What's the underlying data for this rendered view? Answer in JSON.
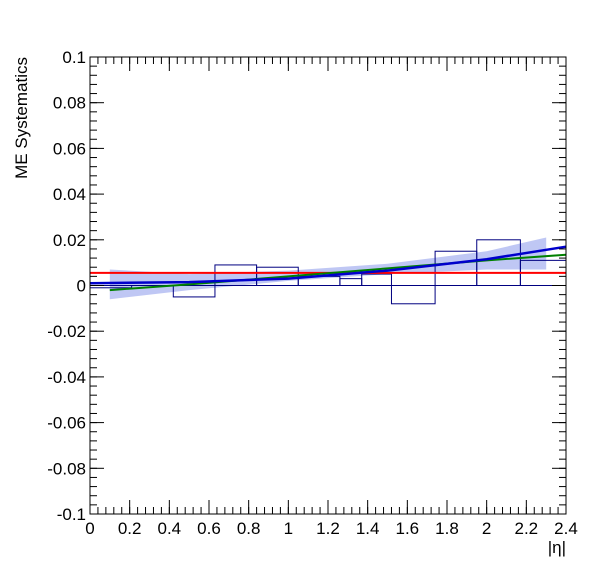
{
  "chart_data": {
    "type": "line",
    "title": "",
    "xlabel": "|η|",
    "ylabel": "ME Systematics",
    "xlim": [
      0,
      2.4
    ],
    "ylim": [
      -0.1,
      0.1
    ],
    "x_ticks": [
      "0",
      "0.2",
      "0.4",
      "0.6",
      "0.8",
      "1",
      "1.2",
      "1.4",
      "1.6",
      "1.8",
      "2",
      "2.2",
      "2.4"
    ],
    "y_ticks": [
      "-0.1",
      "-0.08",
      "-0.06",
      "-0.04",
      "-0.02",
      "0",
      "0.02",
      "0.04",
      "0.06",
      "0.08",
      "0.1"
    ],
    "grid": false,
    "colors": {
      "histogram": "#000080",
      "constant_fit": "#ff0000",
      "green_fit": "#008000",
      "blue_fit": "#0000cc",
      "band": "#aab4f0"
    },
    "histogram": {
      "bin_edges": [
        0.0,
        0.21,
        0.42,
        0.63,
        0.84,
        1.05,
        1.26,
        1.37,
        1.52,
        1.74,
        1.95,
        2.17,
        2.4
      ],
      "values": [
        -0.001,
        0.0,
        -0.005,
        0.009,
        0.008,
        0.004,
        0.003,
        0.005,
        -0.008,
        0.015,
        0.02,
        0.011
      ]
    },
    "series": [
      {
        "x": [
          0.0,
          2.4
        ],
        "y": [
          0.0055,
          0.0055
        ]
      },
      {
        "x": [
          0.1,
          0.5,
          1.0,
          1.5,
          2.0,
          2.4
        ],
        "y": [
          -0.002,
          0.0005,
          0.004,
          0.0075,
          0.011,
          0.0135
        ]
      },
      {
        "x": [
          0.0,
          0.5,
          1.0,
          1.5,
          2.0,
          2.4
        ],
        "y": [
          0.001,
          0.0015,
          0.003,
          0.0065,
          0.0115,
          0.017
        ]
      }
    ],
    "band": {
      "x": [
        0.1,
        0.5,
        1.0,
        1.5,
        2.0,
        2.3
      ],
      "lower": [
        -0.006,
        -0.002,
        0.002,
        0.005,
        0.007,
        0.007
      ],
      "upper": [
        0.007,
        0.005,
        0.0065,
        0.0095,
        0.015,
        0.021
      ]
    }
  }
}
